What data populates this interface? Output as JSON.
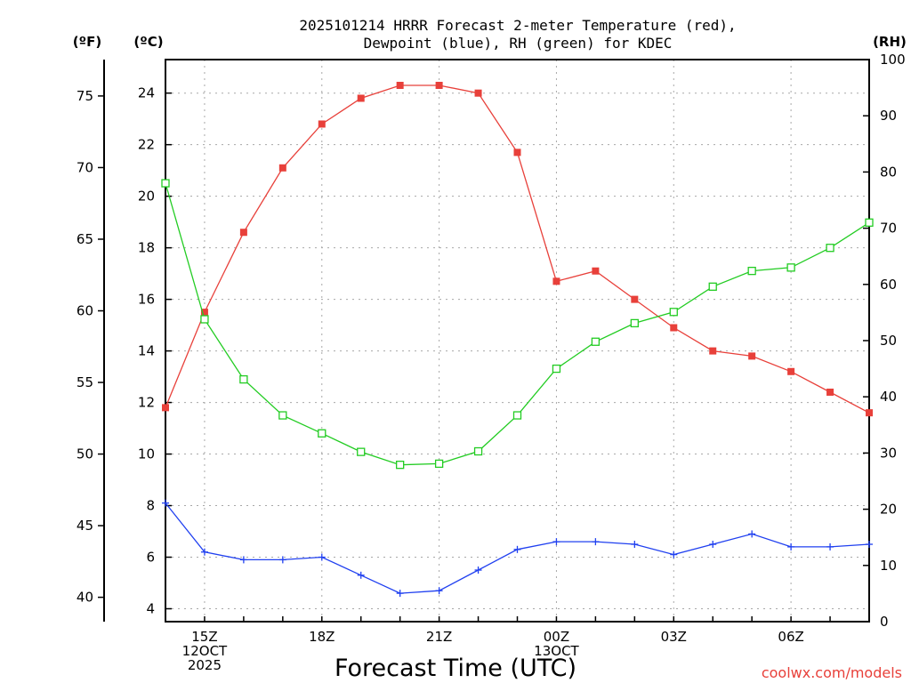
{
  "chart_data": {
    "type": "line",
    "title_lines": [
      "2025101214 HRRR Forecast 2-meter Temperature (red),",
      "Dewpoint (blue), RH (green) for KDEC"
    ],
    "xlabel": "Forecast Time (UTC)",
    "credit": "coolwx.com/models",
    "units": {
      "fahrenheit": "(ºF)",
      "celsius": "(ºC)",
      "rh": "(RH)"
    },
    "x": [
      14,
      15,
      16,
      17,
      18,
      19,
      20,
      21,
      22,
      23,
      24,
      25,
      26,
      27,
      28,
      29,
      30,
      31,
      32
    ],
    "xlim": [
      14,
      32
    ],
    "x_ticks": [
      {
        "x": 15,
        "lines": [
          "15Z",
          "12OCT",
          "2025"
        ]
      },
      {
        "x": 18,
        "lines": [
          "18Z"
        ]
      },
      {
        "x": 21,
        "lines": [
          "21Z"
        ]
      },
      {
        "x": 24,
        "lines": [
          "00Z",
          "13OCT"
        ]
      },
      {
        "x": 27,
        "lines": [
          "03Z"
        ]
      },
      {
        "x": 30,
        "lines": [
          "06Z"
        ]
      }
    ],
    "ylim_celsius": [
      3.5,
      25.3
    ],
    "celsius_ticks": [
      4,
      6,
      8,
      10,
      12,
      14,
      16,
      18,
      20,
      22,
      24
    ],
    "fahrenheit_ticks": [
      40,
      45,
      50,
      55,
      60,
      65,
      70,
      75
    ],
    "ylim_rh": [
      0,
      100
    ],
    "rh_ticks": [
      0,
      10,
      20,
      30,
      40,
      50,
      60,
      70,
      80,
      90,
      100
    ],
    "series": [
      {
        "name": "Temperature",
        "axis": "celsius",
        "color": "#e8403a",
        "marker": "filled-square",
        "values": [
          11.8,
          15.5,
          18.6,
          21.1,
          22.8,
          23.8,
          24.3,
          24.3,
          24.0,
          21.7,
          16.7,
          17.1,
          16.0,
          14.9,
          14.0,
          13.8,
          13.2,
          12.4,
          11.6
        ]
      },
      {
        "name": "Dewpoint",
        "axis": "celsius",
        "color": "#2040f0",
        "marker": "plus",
        "values": [
          8.1,
          6.2,
          5.9,
          5.9,
          6.0,
          5.3,
          4.6,
          4.7,
          5.5,
          6.3,
          6.6,
          6.6,
          6.5,
          6.1,
          6.5,
          6.9,
          6.4,
          6.4,
          6.5
        ]
      },
      {
        "name": "RH",
        "axis": "rh",
        "color": "#22cc22",
        "marker": "open-square",
        "values": [
          78.0,
          53.8,
          43.1,
          36.7,
          33.5,
          30.2,
          27.9,
          28.1,
          30.3,
          36.7,
          45.0,
          49.8,
          53.1,
          55.1,
          59.6,
          62.4,
          63.0,
          66.5,
          71.0
        ]
      }
    ]
  }
}
